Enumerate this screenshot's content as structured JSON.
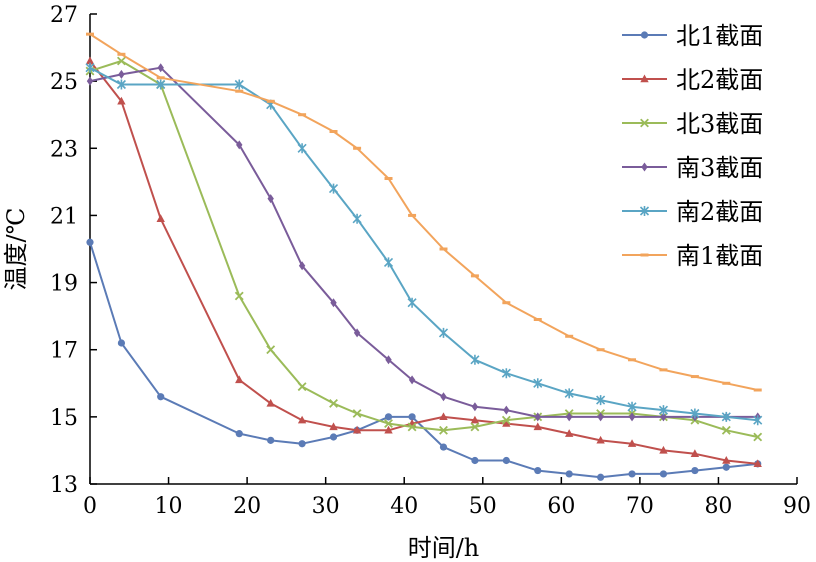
{
  "chart_data": {
    "type": "line",
    "title": "",
    "xlabel": "时间/h",
    "ylabel": "温度/℃",
    "xlim": [
      0,
      90
    ],
    "ylim": [
      13,
      27
    ],
    "xticks": [
      0,
      10,
      20,
      30,
      40,
      50,
      60,
      70,
      80,
      90
    ],
    "yticks": [
      13,
      15,
      17,
      19,
      21,
      23,
      25,
      27
    ],
    "grid": false,
    "legend_position": "top-right",
    "series": [
      {
        "name": "北1截面",
        "color": "#5b7bb6",
        "marker": "circle",
        "x": [
          0,
          4,
          9,
          19,
          23,
          27,
          31,
          34,
          38,
          41,
          45,
          49,
          53,
          57,
          61,
          65,
          69,
          73,
          77,
          81,
          85
        ],
        "y": [
          20.2,
          17.2,
          15.6,
          14.5,
          14.3,
          14.2,
          14.4,
          14.6,
          15.0,
          15.0,
          14.1,
          13.7,
          13.7,
          13.4,
          13.3,
          13.2,
          13.3,
          13.3,
          13.4,
          13.5,
          13.6
        ]
      },
      {
        "name": "北2截面",
        "color": "#c0504d",
        "marker": "triangle",
        "x": [
          0,
          4,
          9,
          19,
          23,
          27,
          31,
          34,
          38,
          41,
          45,
          49,
          53,
          57,
          61,
          65,
          69,
          73,
          77,
          81,
          85
        ],
        "y": [
          25.6,
          24.4,
          20.9,
          16.1,
          15.4,
          14.9,
          14.7,
          14.6,
          14.6,
          14.8,
          15.0,
          14.9,
          14.8,
          14.7,
          14.5,
          14.3,
          14.2,
          14.0,
          13.9,
          13.7,
          13.6
        ]
      },
      {
        "name": "北3截面",
        "color": "#9bbb59",
        "marker": "x",
        "x": [
          0,
          4,
          9,
          19,
          23,
          27,
          31,
          34,
          38,
          41,
          45,
          49,
          53,
          57,
          61,
          65,
          69,
          73,
          77,
          81,
          85
        ],
        "y": [
          25.3,
          25.6,
          24.9,
          18.6,
          17.0,
          15.9,
          15.4,
          15.1,
          14.8,
          14.7,
          14.6,
          14.7,
          14.9,
          15.0,
          15.1,
          15.1,
          15.1,
          15.0,
          14.9,
          14.6,
          14.4
        ]
      },
      {
        "name": "南3截面",
        "color": "#7a5c9a",
        "marker": "diamond",
        "x": [
          0,
          4,
          9,
          19,
          23,
          27,
          31,
          34,
          38,
          41,
          45,
          49,
          53,
          57,
          61,
          65,
          69,
          73,
          77,
          81,
          85
        ],
        "y": [
          25.0,
          25.2,
          25.4,
          23.1,
          21.5,
          19.5,
          18.4,
          17.5,
          16.7,
          16.1,
          15.6,
          15.3,
          15.2,
          15.0,
          15.0,
          15.0,
          15.0,
          15.0,
          15.0,
          15.0,
          15.0
        ]
      },
      {
        "name": "南2截面",
        "color": "#5aa5c4",
        "marker": "star",
        "x": [
          0,
          4,
          9,
          19,
          23,
          27,
          31,
          34,
          38,
          41,
          45,
          49,
          53,
          57,
          61,
          65,
          69,
          73,
          77,
          81,
          85
        ],
        "y": [
          25.4,
          24.9,
          24.9,
          24.9,
          24.3,
          23.0,
          21.8,
          20.9,
          19.6,
          18.4,
          17.5,
          16.7,
          16.3,
          16.0,
          15.7,
          15.5,
          15.3,
          15.2,
          15.1,
          15.0,
          14.9
        ]
      },
      {
        "name": "南1截面",
        "color": "#f2a45c",
        "marker": "dash",
        "x": [
          0,
          4,
          9,
          19,
          23,
          27,
          31,
          34,
          38,
          41,
          45,
          49,
          53,
          57,
          61,
          65,
          69,
          73,
          77,
          81,
          85
        ],
        "y": [
          26.4,
          25.8,
          25.1,
          24.7,
          24.4,
          24.0,
          23.5,
          23.0,
          22.1,
          21.0,
          20.0,
          19.2,
          18.4,
          17.9,
          17.4,
          17.0,
          16.7,
          16.4,
          16.2,
          16.0,
          15.8
        ]
      }
    ]
  }
}
